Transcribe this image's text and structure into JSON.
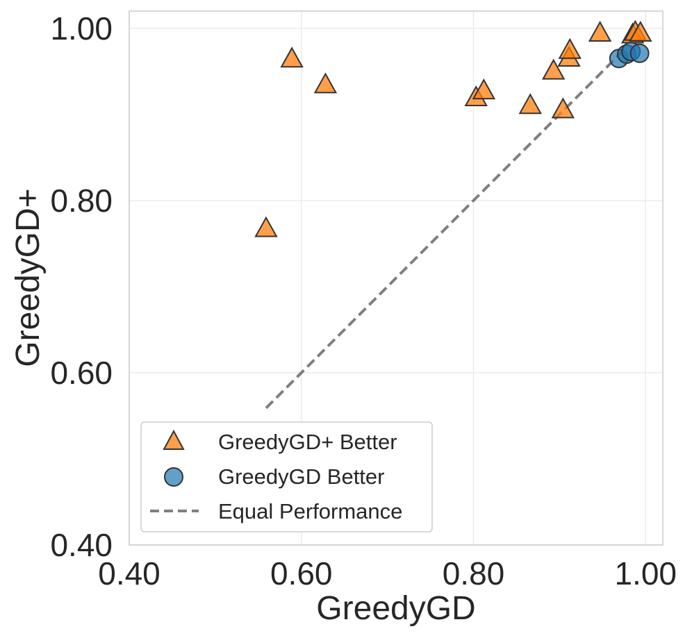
{
  "chart_data": {
    "type": "scatter",
    "xlabel": "GreedyGD",
    "ylabel": "GreedyGD+",
    "xlim": [
      0.4,
      1.02
    ],
    "ylim": [
      0.4,
      1.02
    ],
    "xticks": [
      0.4,
      0.6,
      0.8,
      1.0
    ],
    "yticks": [
      0.4,
      0.6,
      0.8,
      1.0
    ],
    "xtick_labels": [
      "0.40",
      "0.60",
      "0.80",
      "1.00"
    ],
    "ytick_labels": [
      "0.40",
      "0.60",
      "0.80",
      "1.00"
    ],
    "grid": true,
    "legend_position": "lower-left",
    "series": [
      {
        "name": "GreedyGD+ Better",
        "marker": "triangle",
        "color": "#ff7f0e",
        "points": [
          {
            "x": 0.559,
            "y": 0.768
          },
          {
            "x": 0.589,
            "y": 0.965
          },
          {
            "x": 0.628,
            "y": 0.935
          },
          {
            "x": 0.803,
            "y": 0.92
          },
          {
            "x": 0.812,
            "y": 0.928
          },
          {
            "x": 0.866,
            "y": 0.911
          },
          {
            "x": 0.893,
            "y": 0.951
          },
          {
            "x": 0.904,
            "y": 0.906
          },
          {
            "x": 0.911,
            "y": 0.966
          },
          {
            "x": 0.912,
            "y": 0.975
          },
          {
            "x": 0.947,
            "y": 0.995
          },
          {
            "x": 0.985,
            "y": 0.993
          },
          {
            "x": 0.988,
            "y": 0.996
          },
          {
            "x": 0.994,
            "y": 0.995
          }
        ]
      },
      {
        "name": "GreedyGD Better",
        "marker": "circle",
        "color": "#1f77b4",
        "points": [
          {
            "x": 0.969,
            "y": 0.965
          },
          {
            "x": 0.978,
            "y": 0.97
          },
          {
            "x": 0.983,
            "y": 0.973
          },
          {
            "x": 0.993,
            "y": 0.971
          }
        ]
      }
    ],
    "reference_line": {
      "name": "Equal Performance",
      "style": "dashed",
      "color": "#7f7f7f",
      "from": [
        0.559,
        0.559
      ],
      "to": [
        0.975,
        0.975
      ]
    }
  },
  "legend": {
    "items": [
      {
        "label": "GreedyGD+ Better",
        "marker": "triangle"
      },
      {
        "label": "GreedyGD Better",
        "marker": "circle"
      },
      {
        "label": "Equal Performance",
        "marker": "dashed-line"
      }
    ]
  }
}
